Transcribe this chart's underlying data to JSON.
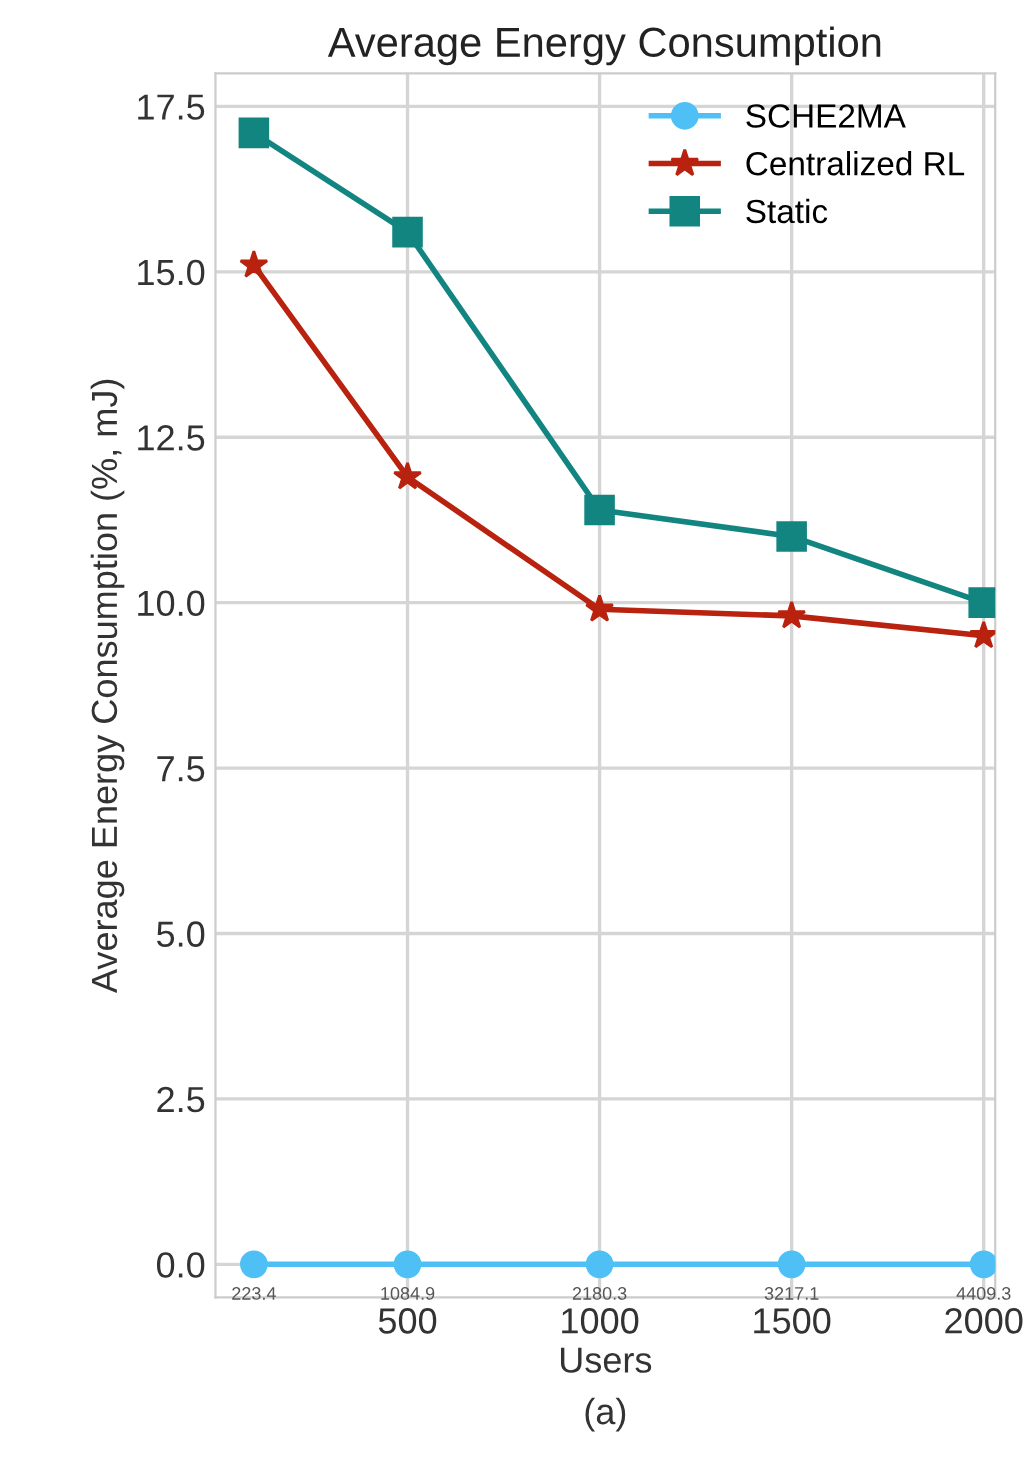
{
  "chart_data": {
    "type": "line",
    "title": "Average Energy Consumption",
    "xlabel": "Users",
    "ylabel": "Average Energy Consumption (%, mJ)",
    "x": [
      100,
      500,
      1000,
      1500,
      2000
    ],
    "series": [
      {
        "name": "SCHE2MA",
        "color": "#4fc0f5",
        "marker": "circle",
        "values": [
          0,
          0,
          0,
          0,
          0
        ]
      },
      {
        "name": "Centralized RL",
        "color": "#b8220e",
        "marker": "star",
        "values": [
          15.1,
          11.9,
          9.9,
          9.8,
          9.5
        ]
      },
      {
        "name": "Static",
        "color": "#138580",
        "marker": "square",
        "values": [
          17.1,
          15.6,
          11.4,
          11.0,
          10.0
        ]
      }
    ],
    "annotations": [
      {
        "text": "223.4",
        "x": 100,
        "y": 0
      },
      {
        "text": "1084.9",
        "x": 500,
        "y": 0
      },
      {
        "text": "2180.3",
        "x": 1000,
        "y": 0
      },
      {
        "text": "3217.1",
        "x": 1500,
        "y": 0
      },
      {
        "text": "4409.3",
        "x": 2000,
        "y": 0
      },
      "(a)"
    ],
    "xlim": [
      0,
      2030
    ],
    "xticks": [
      500,
      1000,
      1500,
      2000
    ],
    "ylim": [
      -0.5,
      18
    ],
    "yticks": [
      {
        "value": 0,
        "label": "0.0"
      },
      2.5,
      {
        "value": 5,
        "label": "5.0"
      },
      7.5,
      {
        "value": 10,
        "label": "10.0"
      },
      12.5,
      {
        "value": 15,
        "label": "15.0"
      },
      17.5
    ],
    "grid": true,
    "legend": "top right",
    "line_style": "solid"
  }
}
